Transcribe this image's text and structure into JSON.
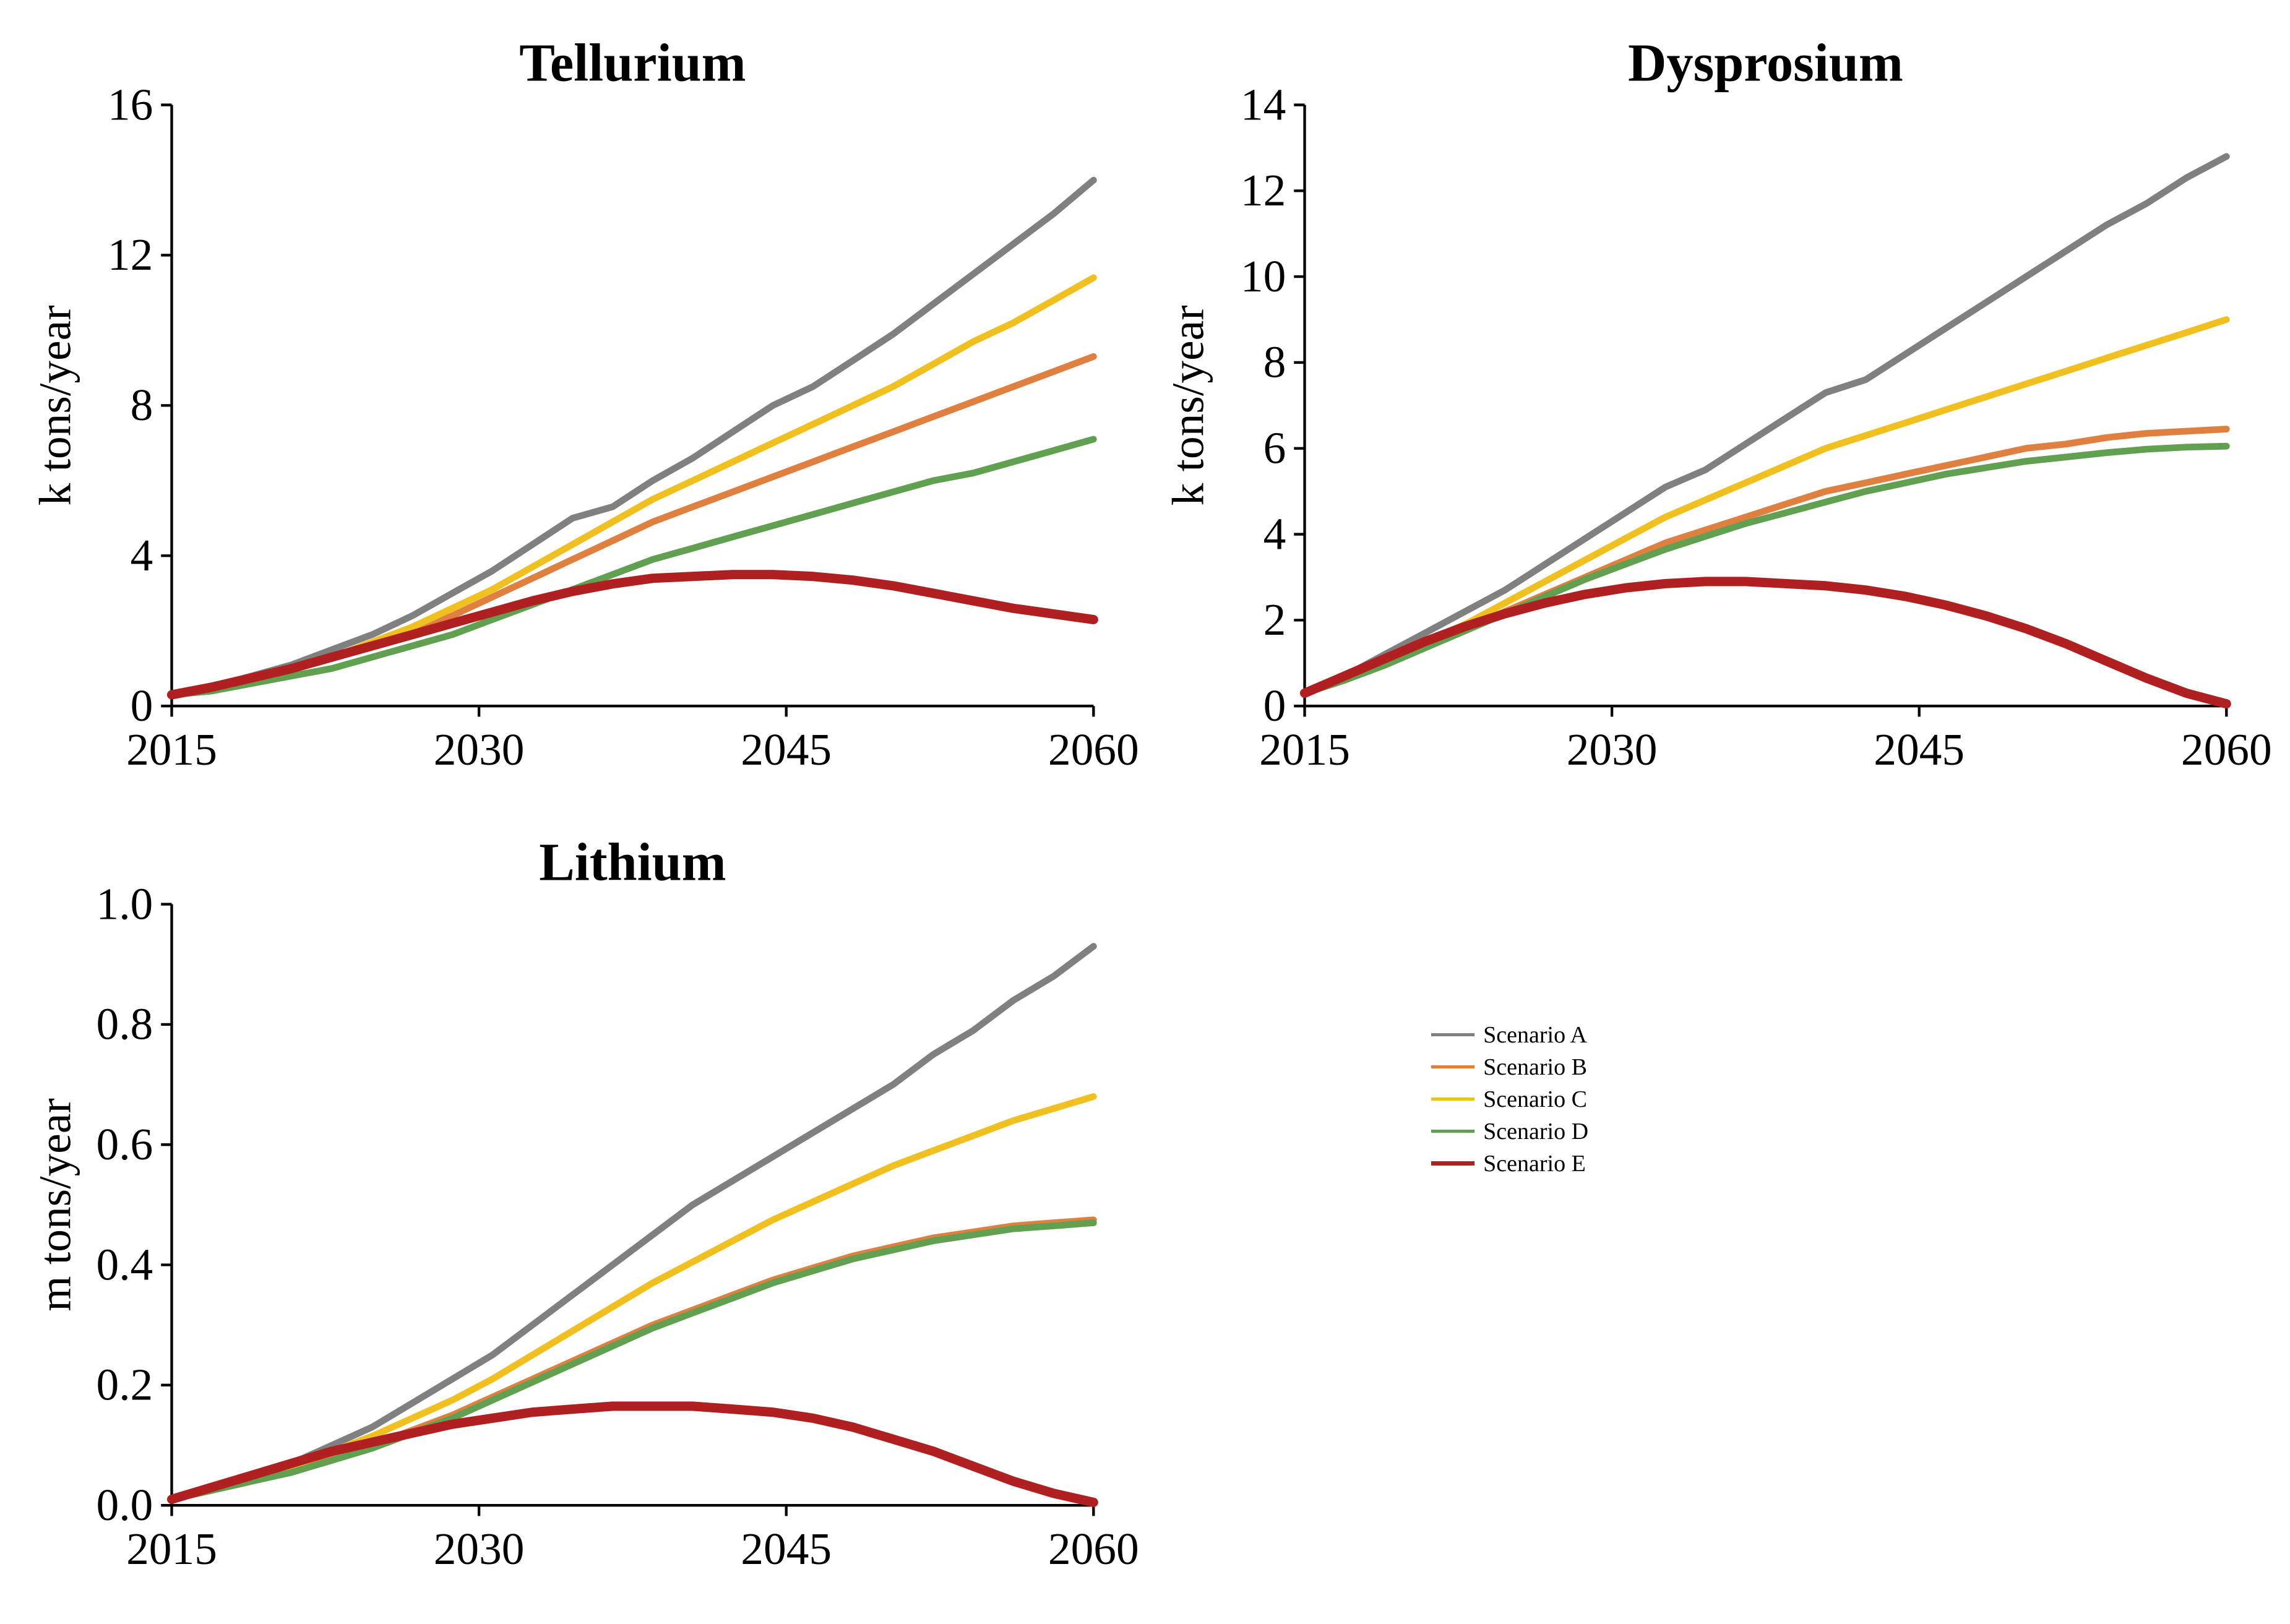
{
  "colors": {
    "A": "#808080",
    "B": "#e08040",
    "C": "#f0c020",
    "D": "#60a050",
    "E": "#b02020",
    "axis": "#000000",
    "background": "#ffffff"
  },
  "line_width": {
    "default": 5,
    "E": 7
  },
  "legend": {
    "items": [
      {
        "key": "A",
        "label": "Scenario A"
      },
      {
        "key": "B",
        "label": "Scenario B"
      },
      {
        "key": "C",
        "label": "Scenario C"
      },
      {
        "key": "D",
        "label": "Scenario D"
      },
      {
        "key": "E",
        "label": "Scenario E"
      }
    ]
  },
  "x_axis": {
    "min": 2015,
    "max": 2060,
    "ticks": [
      2015,
      2030,
      2045,
      2060
    ]
  },
  "charts": [
    {
      "id": "tellurium",
      "title": "Tellurium",
      "ylabel": "k tons/year",
      "ymin": 0,
      "ymax": 16,
      "yticks": [
        0,
        4,
        8,
        12,
        16
      ],
      "series": {
        "A": [
          0.3,
          0.5,
          0.8,
          1.1,
          1.5,
          1.9,
          2.4,
          3.0,
          3.6,
          4.3,
          5.0,
          5.3,
          6.0,
          6.6,
          7.3,
          8.0,
          8.5,
          9.2,
          9.9,
          10.7,
          11.5,
          12.3,
          13.1,
          14.0
        ],
        "B": [
          0.3,
          0.5,
          0.7,
          1.0,
          1.3,
          1.6,
          2.0,
          2.4,
          2.9,
          3.4,
          3.9,
          4.4,
          4.9,
          5.3,
          5.7,
          6.1,
          6.5,
          6.9,
          7.3,
          7.7,
          8.1,
          8.5,
          8.9,
          9.3
        ],
        "C": [
          0.3,
          0.5,
          0.7,
          1.0,
          1.3,
          1.7,
          2.1,
          2.6,
          3.1,
          3.7,
          4.3,
          4.9,
          5.5,
          6.0,
          6.5,
          7.0,
          7.5,
          8.0,
          8.5,
          9.1,
          9.7,
          10.2,
          10.8,
          11.4
        ],
        "D": [
          0.3,
          0.4,
          0.6,
          0.8,
          1.0,
          1.3,
          1.6,
          1.9,
          2.3,
          2.7,
          3.1,
          3.5,
          3.9,
          4.2,
          4.5,
          4.8,
          5.1,
          5.4,
          5.7,
          6.0,
          6.2,
          6.5,
          6.8,
          7.1
        ],
        "E": [
          0.3,
          0.5,
          0.75,
          1.0,
          1.3,
          1.6,
          1.9,
          2.2,
          2.5,
          2.8,
          3.05,
          3.25,
          3.4,
          3.45,
          3.5,
          3.5,
          3.45,
          3.35,
          3.2,
          3.0,
          2.8,
          2.6,
          2.45,
          2.3
        ]
      }
    },
    {
      "id": "dysprosium",
      "title": "Dysprosium",
      "ylabel": "k tons/year",
      "ymin": 0,
      "ymax": 14,
      "yticks": [
        0,
        2,
        4,
        6,
        8,
        10,
        12,
        14
      ],
      "series": {
        "A": [
          0.3,
          0.7,
          1.2,
          1.7,
          2.2,
          2.7,
          3.3,
          3.9,
          4.5,
          5.1,
          5.5,
          6.1,
          6.7,
          7.3,
          7.6,
          8.2,
          8.8,
          9.4,
          10.0,
          10.6,
          11.2,
          11.7,
          12.3,
          12.8
        ],
        "B": [
          0.3,
          0.6,
          1.0,
          1.4,
          1.8,
          2.2,
          2.6,
          3.0,
          3.4,
          3.8,
          4.1,
          4.4,
          4.7,
          5.0,
          5.2,
          5.4,
          5.6,
          5.8,
          6.0,
          6.1,
          6.25,
          6.35,
          6.4,
          6.45
        ],
        "C": [
          0.3,
          0.65,
          1.1,
          1.5,
          1.9,
          2.4,
          2.9,
          3.4,
          3.9,
          4.4,
          4.8,
          5.2,
          5.6,
          6.0,
          6.3,
          6.6,
          6.9,
          7.2,
          7.5,
          7.8,
          8.1,
          8.4,
          8.7,
          9.0
        ],
        "D": [
          0.3,
          0.6,
          0.95,
          1.35,
          1.75,
          2.15,
          2.55,
          2.95,
          3.3,
          3.65,
          3.95,
          4.25,
          4.5,
          4.75,
          5.0,
          5.2,
          5.4,
          5.55,
          5.7,
          5.8,
          5.9,
          5.98,
          6.03,
          6.05
        ],
        "E": [
          0.3,
          0.7,
          1.1,
          1.5,
          1.85,
          2.15,
          2.4,
          2.6,
          2.75,
          2.85,
          2.9,
          2.9,
          2.85,
          2.8,
          2.7,
          2.55,
          2.35,
          2.1,
          1.8,
          1.45,
          1.05,
          0.65,
          0.3,
          0.05
        ]
      }
    },
    {
      "id": "lithium",
      "title": "Lithium",
      "ylabel": "m tons/year",
      "ymin": 0.0,
      "ymax": 1.0,
      "yticks": [
        0.0,
        0.2,
        0.4,
        0.6,
        0.8,
        1.0
      ],
      "ytick_format": "fixed1",
      "series": {
        "A": [
          0.01,
          0.03,
          0.05,
          0.07,
          0.1,
          0.13,
          0.17,
          0.21,
          0.25,
          0.3,
          0.35,
          0.4,
          0.45,
          0.5,
          0.54,
          0.58,
          0.62,
          0.66,
          0.7,
          0.75,
          0.79,
          0.84,
          0.88,
          0.93
        ],
        "B": [
          0.01,
          0.025,
          0.04,
          0.06,
          0.08,
          0.1,
          0.125,
          0.15,
          0.18,
          0.21,
          0.24,
          0.27,
          0.3,
          0.325,
          0.35,
          0.375,
          0.395,
          0.415,
          0.43,
          0.445,
          0.455,
          0.465,
          0.47,
          0.475
        ],
        "C": [
          0.01,
          0.025,
          0.045,
          0.065,
          0.09,
          0.115,
          0.145,
          0.175,
          0.21,
          0.25,
          0.29,
          0.33,
          0.37,
          0.405,
          0.44,
          0.475,
          0.505,
          0.535,
          0.565,
          0.59,
          0.615,
          0.64,
          0.66,
          0.68
        ],
        "D": [
          0.01,
          0.025,
          0.04,
          0.055,
          0.075,
          0.095,
          0.12,
          0.145,
          0.175,
          0.205,
          0.235,
          0.265,
          0.295,
          0.32,
          0.345,
          0.37,
          0.39,
          0.41,
          0.425,
          0.44,
          0.45,
          0.46,
          0.465,
          0.47
        ],
        "E": [
          0.01,
          0.03,
          0.05,
          0.07,
          0.09,
          0.105,
          0.12,
          0.135,
          0.145,
          0.155,
          0.16,
          0.165,
          0.165,
          0.165,
          0.16,
          0.155,
          0.145,
          0.13,
          0.11,
          0.09,
          0.065,
          0.04,
          0.02,
          0.005
        ]
      }
    }
  ],
  "layout": {
    "title_fontsize": 40,
    "label_fontsize": 34,
    "tick_fontsize": 34,
    "legend_fontsize": 38
  }
}
